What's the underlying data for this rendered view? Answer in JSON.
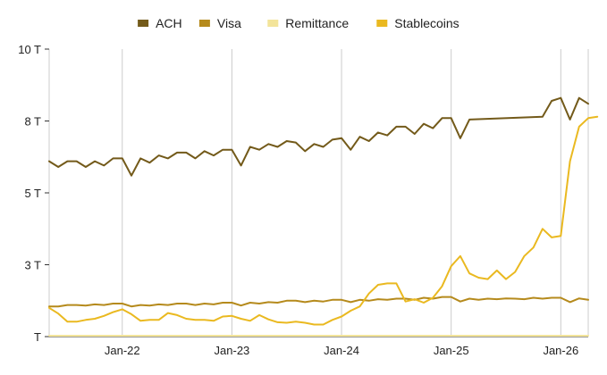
{
  "chart_data": {
    "type": "line",
    "title": "",
    "xlabel": "",
    "ylabel": "",
    "x_ticks": [
      "Jan-22",
      "Jan-23",
      "Jan-24",
      "Jan-25",
      "Jan-26"
    ],
    "y_ticks": [
      {
        "value": 0,
        "label": "T"
      },
      {
        "value": 2.5,
        "label": "3 T"
      },
      {
        "value": 5,
        "label": "5 T"
      },
      {
        "value": 7.5,
        "label": "8 T"
      },
      {
        "value": 10,
        "label": "10 T"
      }
    ],
    "ylim": [
      0,
      10
    ],
    "grid": "vertical",
    "legend_position": "top",
    "series": [
      {
        "name": "ACH",
        "color": "#735a1a",
        "points": [
          [
            "2021-05",
            6.1
          ],
          [
            "2021-06",
            5.9
          ],
          [
            "2021-07",
            6.1
          ],
          [
            "2021-08",
            6.1
          ],
          [
            "2021-09",
            5.9
          ],
          [
            "2021-10",
            6.1
          ],
          [
            "2021-11",
            5.95
          ],
          [
            "2021-12",
            6.2
          ],
          [
            "2022-01",
            6.2
          ],
          [
            "2022-02",
            5.6
          ],
          [
            "2022-03",
            6.2
          ],
          [
            "2022-04",
            6.05
          ],
          [
            "2022-05",
            6.3
          ],
          [
            "2022-06",
            6.2
          ],
          [
            "2022-07",
            6.4
          ],
          [
            "2022-08",
            6.4
          ],
          [
            "2022-09",
            6.2
          ],
          [
            "2022-10",
            6.45
          ],
          [
            "2022-11",
            6.3
          ],
          [
            "2022-12",
            6.5
          ],
          [
            "2023-01",
            6.5
          ],
          [
            "2023-02",
            5.95
          ],
          [
            "2023-03",
            6.6
          ],
          [
            "2023-04",
            6.5
          ],
          [
            "2023-05",
            6.7
          ],
          [
            "2023-06",
            6.6
          ],
          [
            "2023-07",
            6.8
          ],
          [
            "2023-08",
            6.75
          ],
          [
            "2023-09",
            6.45
          ],
          [
            "2023-10",
            6.7
          ],
          [
            "2023-11",
            6.6
          ],
          [
            "2023-12",
            6.85
          ],
          [
            "2024-01",
            6.9
          ],
          [
            "2024-02",
            6.5
          ],
          [
            "2024-03",
            6.95
          ],
          [
            "2024-04",
            6.8
          ],
          [
            "2024-05",
            7.1
          ],
          [
            "2024-06",
            7.0
          ],
          [
            "2024-07",
            7.3
          ],
          [
            "2024-08",
            7.3
          ],
          [
            "2024-09",
            7.05
          ],
          [
            "2024-10",
            7.4
          ],
          [
            "2024-11",
            7.25
          ],
          [
            "2024-12",
            7.6
          ],
          [
            "2025-01",
            7.6
          ],
          [
            "2025-02",
            6.9
          ],
          [
            "2025-03",
            7.55
          ],
          [
            "2025-11",
            7.65
          ],
          [
            "2025-12",
            8.2
          ],
          [
            "2026-01",
            8.3
          ],
          [
            "2026-02",
            7.55
          ],
          [
            "2026-03",
            8.3
          ],
          [
            "2026-04",
            8.1
          ]
        ]
      },
      {
        "name": "Visa",
        "color": "#b58a1c",
        "points": [
          [
            "2021-05",
            1.05
          ],
          [
            "2021-06",
            1.05
          ],
          [
            "2021-07",
            1.1
          ],
          [
            "2021-08",
            1.1
          ],
          [
            "2021-09",
            1.08
          ],
          [
            "2021-10",
            1.12
          ],
          [
            "2021-11",
            1.1
          ],
          [
            "2021-12",
            1.15
          ],
          [
            "2022-01",
            1.15
          ],
          [
            "2022-02",
            1.05
          ],
          [
            "2022-03",
            1.1
          ],
          [
            "2022-04",
            1.08
          ],
          [
            "2022-05",
            1.12
          ],
          [
            "2022-06",
            1.1
          ],
          [
            "2022-07",
            1.15
          ],
          [
            "2022-08",
            1.15
          ],
          [
            "2022-09",
            1.1
          ],
          [
            "2022-10",
            1.15
          ],
          [
            "2022-11",
            1.12
          ],
          [
            "2022-12",
            1.18
          ],
          [
            "2023-01",
            1.18
          ],
          [
            "2023-02",
            1.08
          ],
          [
            "2023-03",
            1.18
          ],
          [
            "2023-04",
            1.15
          ],
          [
            "2023-05",
            1.2
          ],
          [
            "2023-06",
            1.18
          ],
          [
            "2023-07",
            1.25
          ],
          [
            "2023-08",
            1.25
          ],
          [
            "2023-09",
            1.2
          ],
          [
            "2023-10",
            1.25
          ],
          [
            "2023-11",
            1.22
          ],
          [
            "2023-12",
            1.28
          ],
          [
            "2024-01",
            1.28
          ],
          [
            "2024-02",
            1.2
          ],
          [
            "2024-03",
            1.28
          ],
          [
            "2024-04",
            1.25
          ],
          [
            "2024-05",
            1.3
          ],
          [
            "2024-06",
            1.28
          ],
          [
            "2024-07",
            1.32
          ],
          [
            "2024-08",
            1.32
          ],
          [
            "2024-09",
            1.28
          ],
          [
            "2024-10",
            1.35
          ],
          [
            "2024-11",
            1.32
          ],
          [
            "2024-12",
            1.38
          ],
          [
            "2025-01",
            1.38
          ],
          [
            "2025-02",
            1.22
          ],
          [
            "2025-03",
            1.32
          ],
          [
            "2025-04",
            1.28
          ],
          [
            "2025-05",
            1.32
          ],
          [
            "2025-06",
            1.3
          ],
          [
            "2025-07",
            1.33
          ],
          [
            "2025-08",
            1.32
          ],
          [
            "2025-09",
            1.3
          ],
          [
            "2025-10",
            1.35
          ],
          [
            "2025-11",
            1.32
          ],
          [
            "2025-12",
            1.35
          ],
          [
            "2026-01",
            1.35
          ],
          [
            "2026-02",
            1.2
          ],
          [
            "2026-03",
            1.33
          ],
          [
            "2026-04",
            1.28
          ]
        ]
      },
      {
        "name": "Remittance",
        "color": "#f3e49a",
        "points": [
          [
            "2021-05",
            0.03
          ],
          [
            "2021-12",
            0.03
          ],
          [
            "2022-06",
            0.03
          ],
          [
            "2022-12",
            0.03
          ],
          [
            "2023-06",
            0.03
          ],
          [
            "2023-12",
            0.03
          ],
          [
            "2024-06",
            0.03
          ],
          [
            "2024-12",
            0.03
          ],
          [
            "2025-06",
            0.03
          ],
          [
            "2025-12",
            0.03
          ],
          [
            "2026-04",
            0.03
          ]
        ]
      },
      {
        "name": "Stablecoins",
        "color": "#eab920",
        "points": [
          [
            "2021-05",
            1.0
          ],
          [
            "2021-06",
            0.8
          ],
          [
            "2021-07",
            0.52
          ],
          [
            "2021-08",
            0.52
          ],
          [
            "2021-09",
            0.58
          ],
          [
            "2021-10",
            0.62
          ],
          [
            "2021-11",
            0.72
          ],
          [
            "2021-12",
            0.85
          ],
          [
            "2022-01",
            0.95
          ],
          [
            "2022-02",
            0.78
          ],
          [
            "2022-03",
            0.55
          ],
          [
            "2022-04",
            0.58
          ],
          [
            "2022-05",
            0.58
          ],
          [
            "2022-06",
            0.82
          ],
          [
            "2022-07",
            0.75
          ],
          [
            "2022-08",
            0.62
          ],
          [
            "2022-09",
            0.58
          ],
          [
            "2022-10",
            0.58
          ],
          [
            "2022-11",
            0.55
          ],
          [
            "2022-12",
            0.7
          ],
          [
            "2023-01",
            0.72
          ],
          [
            "2023-02",
            0.62
          ],
          [
            "2023-03",
            0.55
          ],
          [
            "2023-04",
            0.75
          ],
          [
            "2023-05",
            0.6
          ],
          [
            "2023-06",
            0.5
          ],
          [
            "2023-07",
            0.48
          ],
          [
            "2023-08",
            0.52
          ],
          [
            "2023-09",
            0.48
          ],
          [
            "2023-10",
            0.42
          ],
          [
            "2023-11",
            0.42
          ],
          [
            "2023-12",
            0.58
          ],
          [
            "2024-01",
            0.7
          ],
          [
            "2024-02",
            0.9
          ],
          [
            "2024-03",
            1.05
          ],
          [
            "2024-04",
            1.5
          ],
          [
            "2024-05",
            1.8
          ],
          [
            "2024-06",
            1.85
          ],
          [
            "2024-07",
            1.85
          ],
          [
            "2024-08",
            1.22
          ],
          [
            "2024-09",
            1.3
          ],
          [
            "2024-10",
            1.18
          ],
          [
            "2024-11",
            1.35
          ],
          [
            "2024-12",
            1.75
          ],
          [
            "2025-01",
            2.45
          ],
          [
            "2025-02",
            2.8
          ],
          [
            "2025-03",
            2.2
          ],
          [
            "2025-04",
            2.05
          ],
          [
            "2025-05",
            2.0
          ],
          [
            "2025-06",
            2.3
          ],
          [
            "2025-07",
            2.0
          ],
          [
            "2025-08",
            2.25
          ],
          [
            "2025-09",
            2.8
          ],
          [
            "2025-10",
            3.1
          ],
          [
            "2025-11",
            3.75
          ],
          [
            "2025-12",
            3.45
          ],
          [
            "2026-01",
            3.5
          ],
          [
            "2026-02",
            6.1
          ],
          [
            "2026-03",
            7.3
          ],
          [
            "2026-04",
            7.6
          ],
          [
            "2026-05",
            7.65
          ]
        ]
      }
    ]
  }
}
